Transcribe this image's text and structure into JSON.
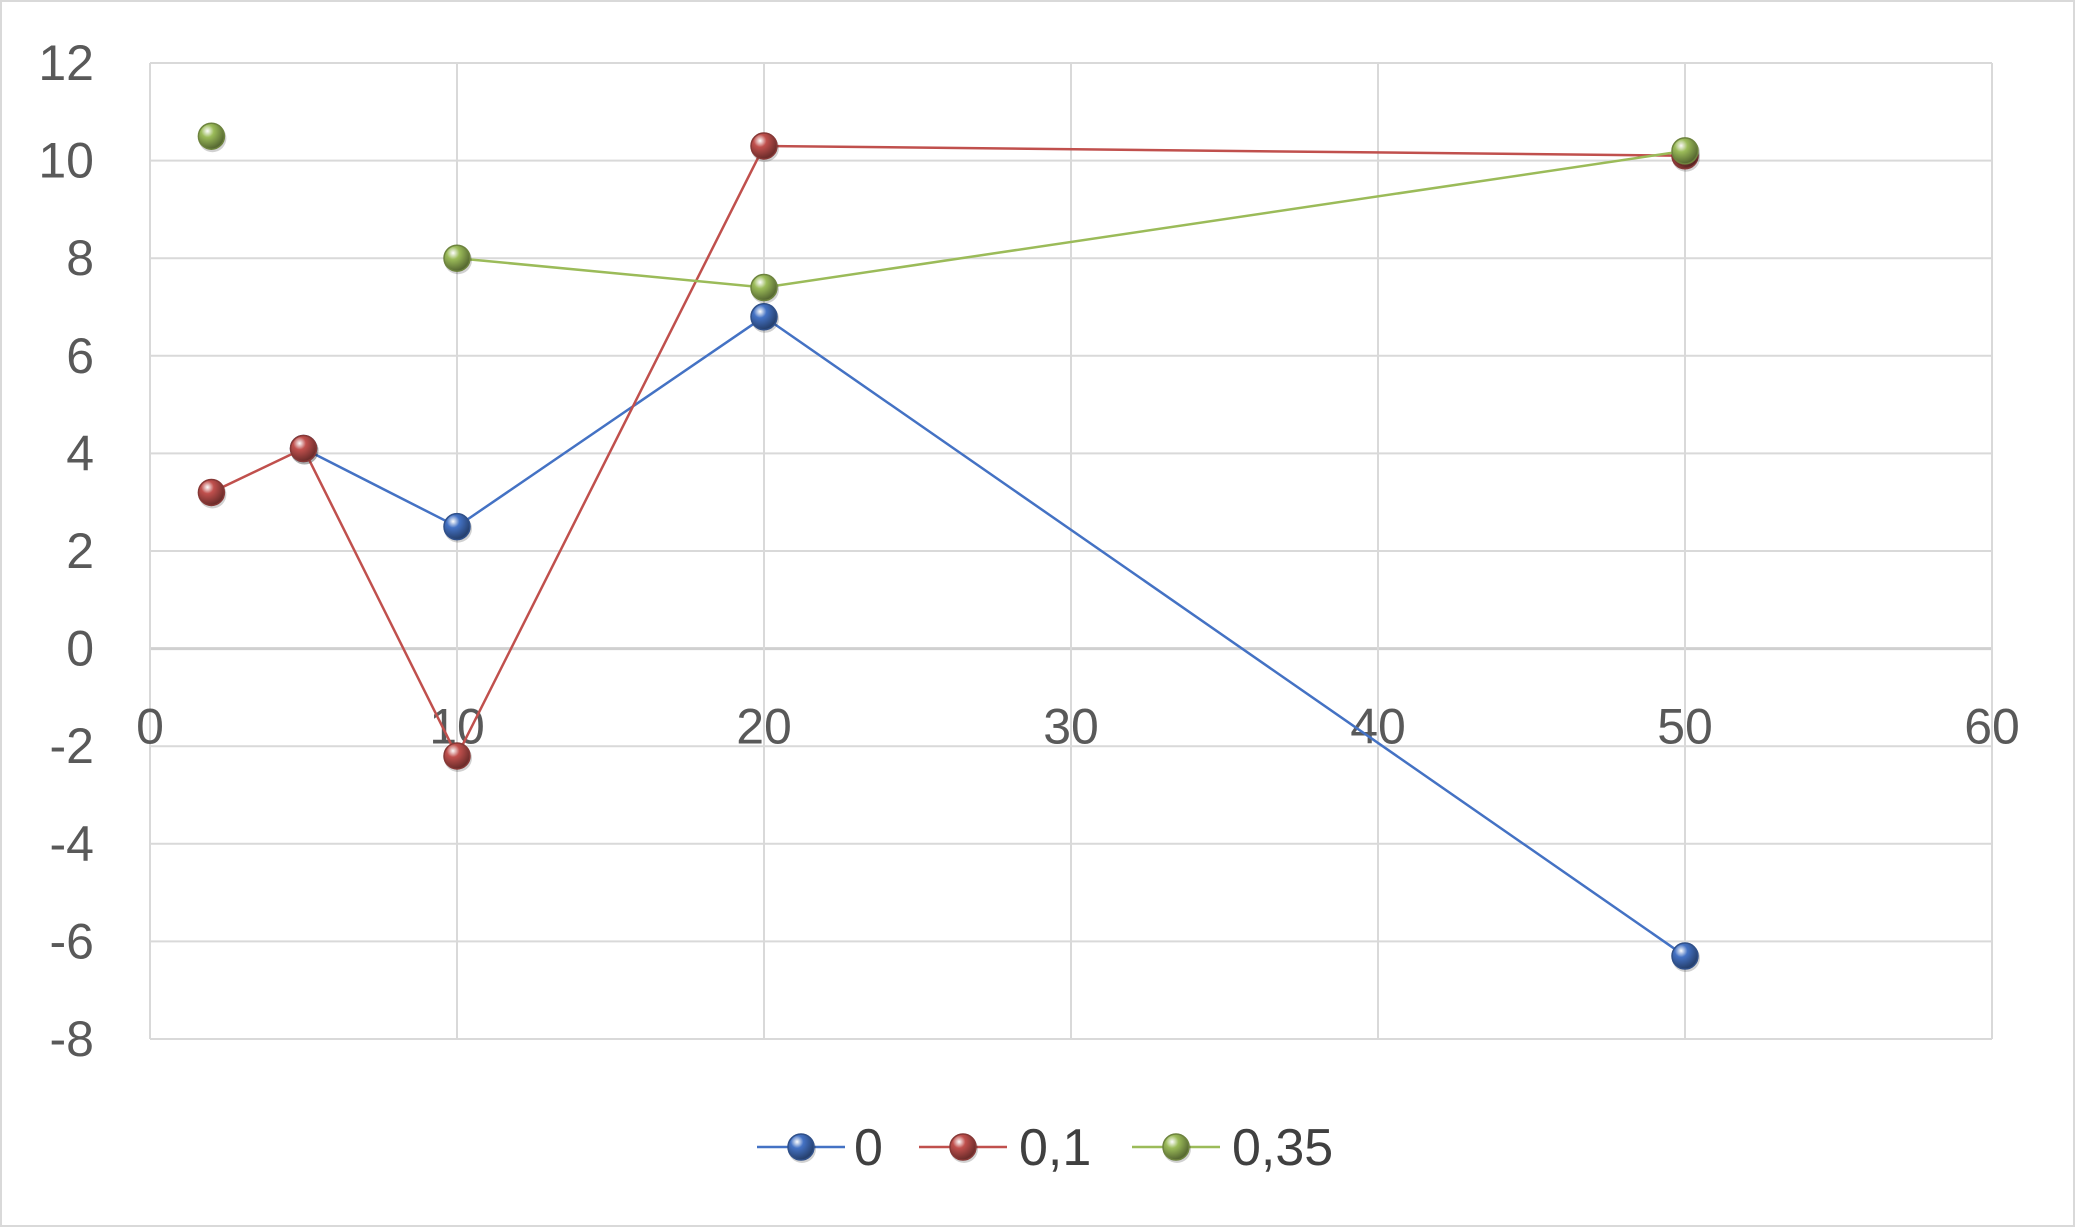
{
  "chart_data": {
    "type": "scatter",
    "title": "",
    "xlabel": "",
    "ylabel": "",
    "xlim": [
      0,
      60
    ],
    "ylim": [
      -8,
      12
    ],
    "x_ticks": [
      0,
      10,
      20,
      30,
      40,
      50,
      60
    ],
    "y_ticks": [
      -8,
      -6,
      -4,
      -2,
      0,
      2,
      4,
      6,
      8,
      10,
      12
    ],
    "x_tick_labels": [
      "0",
      "10",
      "20",
      "30",
      "40",
      "50",
      "60"
    ],
    "y_tick_labels": [
      "-8",
      "-6",
      "-4",
      "-2",
      "0",
      "2",
      "4",
      "6",
      "8",
      "10",
      "12"
    ],
    "grid": true,
    "legend_position": "bottom",
    "lines_straight_with_markers": true,
    "series": [
      {
        "name": "0",
        "color": "#4472c4",
        "x": [
          5,
          10,
          20,
          50
        ],
        "y": [
          4.1,
          2.5,
          6.8,
          -6.3
        ]
      },
      {
        "name": "0,1",
        "color": "#c0504d",
        "x": [
          2,
          5,
          10,
          20,
          50
        ],
        "y": [
          3.2,
          4.1,
          -2.2,
          10.3,
          10.1
        ]
      },
      {
        "name": "0,35",
        "color": "#9bbb59",
        "x": [
          2,
          10,
          20,
          50
        ],
        "y": [
          10.5,
          8.0,
          7.4,
          10.2
        ],
        "connect_from_index": 1
      }
    ]
  }
}
